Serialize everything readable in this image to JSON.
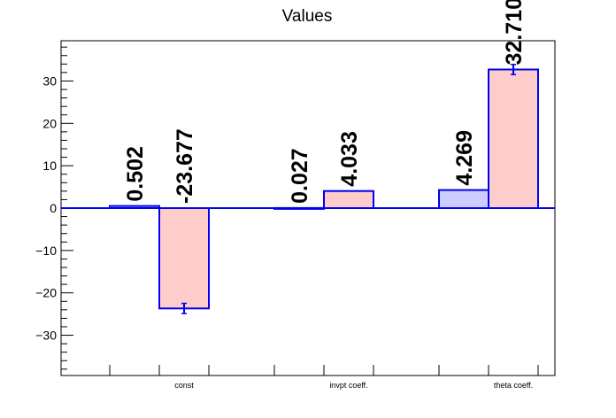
{
  "chart_data": {
    "type": "bar",
    "title": "Values",
    "xlabel": "",
    "ylabel": "",
    "ylim": [
      -39.5,
      39.5
    ],
    "yticks": [
      -30,
      -20,
      -10,
      0,
      10,
      20,
      30
    ],
    "ytick_labels": [
      "−30",
      "−20",
      "−10",
      "0",
      "10",
      "20",
      "30"
    ],
    "categories": [
      "const",
      "invpt coeff.",
      "theta coeff."
    ],
    "series": [
      {
        "values": [
          0.502,
          0.027,
          4.269
        ],
        "labels": [
          "0.502",
          "0.027",
          "4.269"
        ],
        "errors": [
          0,
          0,
          0
        ],
        "fill": "#ccccff",
        "stroke": "#0000ee"
      },
      {
        "values": [
          -23.677,
          4.033,
          32.71
        ],
        "labels": [
          "-23.677",
          "4.033",
          "32.710"
        ],
        "errors": [
          1.2,
          0,
          1.2
        ],
        "fill": "#ffcccc",
        "stroke": "#0000ee"
      }
    ],
    "grid": false,
    "legend": "none"
  }
}
